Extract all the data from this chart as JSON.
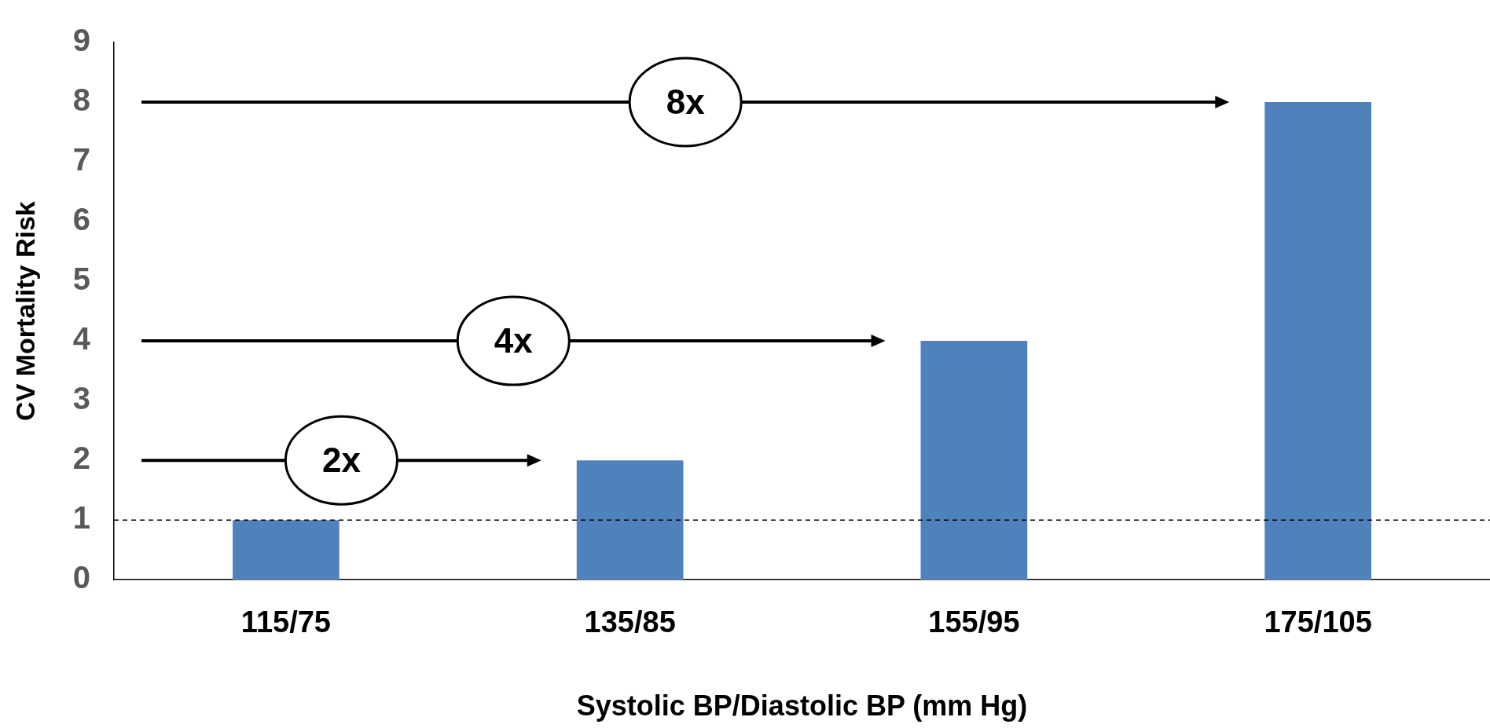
{
  "chart_data": {
    "type": "bar",
    "xlabel": "Systolic BP/Diastolic BP (mm Hg)",
    "ylabel": "CV Mortality Risk",
    "categories": [
      "115/75",
      "135/85",
      "155/95",
      "175/105"
    ],
    "values": [
      1,
      2,
      4,
      8
    ],
    "color": "#4f81bd",
    "ylim": [
      0,
      9
    ],
    "yticks": [
      0,
      1,
      2,
      3,
      4,
      5,
      6,
      7,
      8,
      9
    ],
    "grid": false,
    "legend": false,
    "ref_lines": [
      {
        "axis": "y",
        "value": 1,
        "color": "#000000",
        "line_style": "dashed"
      }
    ],
    "annotations": [
      "8x",
      "4x",
      "2x"
    ]
  }
}
